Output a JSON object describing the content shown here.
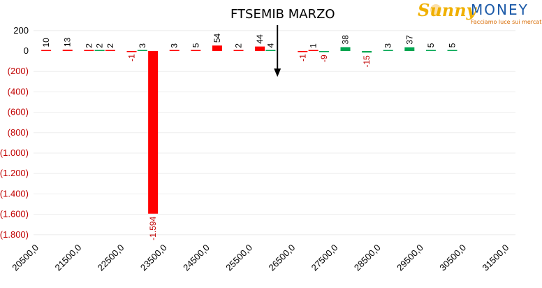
{
  "logo": {
    "brand_part1": "Sunny",
    "brand_part2": "MONEY",
    "tagline": "Facciamo luce sui mercati"
  },
  "title": "FTSEMIB MARZO",
  "colors": {
    "positive": "#00a651",
    "negative": "#ff0000",
    "axis_text": "#000000",
    "negative_text": "#c00000",
    "grid": "#eeeeee"
  },
  "chart_data": {
    "type": "bar",
    "title": "FTSEMIB MARZO",
    "xlabel": "",
    "ylabel": "",
    "ylim": [
      -1800,
      200
    ],
    "grid": true,
    "legend": "none",
    "marker": {
      "label": "FTSEMIB MARZO",
      "x": 26500
    },
    "x_ticks": [
      20500,
      21500,
      22500,
      23500,
      24500,
      25500,
      26500,
      27500,
      28500,
      29500,
      30500,
      31500
    ],
    "x_tick_labels": [
      "20500,0",
      "21500,0",
      "22500,0",
      "23500,0",
      "24500,0",
      "25500,0",
      "26500,0",
      "27500,0",
      "28500,0",
      "29500,0",
      "30500,0",
      "31500,0"
    ],
    "y_ticks": [
      200,
      0,
      -200,
      -400,
      -600,
      -800,
      -1000,
      -1200,
      -1400,
      -1600,
      -1800
    ],
    "y_tick_labels": [
      "200",
      "0",
      "(200)",
      "(400)",
      "(600)",
      "(800)",
      "(1.000)",
      "(1.200)",
      "(1.400)",
      "(1.600)",
      "(1.800)"
    ],
    "bars": [
      {
        "x": 20600,
        "value": 10,
        "color": "red",
        "label": "10"
      },
      {
        "x": 21100,
        "value": 13,
        "color": "red",
        "label": "13"
      },
      {
        "x": 21600,
        "value": 2,
        "color": "red",
        "label": "2"
      },
      {
        "x": 21850,
        "value": 2,
        "color": "green",
        "label": "2"
      },
      {
        "x": 22100,
        "value": 2,
        "color": "red",
        "label": "2"
      },
      {
        "x": 22600,
        "value": -1,
        "color": "red",
        "label": "-1"
      },
      {
        "x": 22850,
        "value": 3,
        "color": "green",
        "label": "3"
      },
      {
        "x": 23100,
        "value": -1594,
        "color": "red",
        "label": "-1.594"
      },
      {
        "x": 23600,
        "value": 3,
        "color": "red",
        "label": "3"
      },
      {
        "x": 24100,
        "value": 5,
        "color": "red",
        "label": "5"
      },
      {
        "x": 24600,
        "value": 54,
        "color": "red",
        "label": "54"
      },
      {
        "x": 25100,
        "value": 2,
        "color": "red",
        "label": "2"
      },
      {
        "x": 25600,
        "value": 44,
        "color": "red",
        "label": "44"
      },
      {
        "x": 25850,
        "value": 4,
        "color": "green",
        "label": "4"
      },
      {
        "x": 26600,
        "value": -1,
        "color": "red",
        "label": "-1"
      },
      {
        "x": 26850,
        "value": 1,
        "color": "red",
        "label": "1"
      },
      {
        "x": 27100,
        "value": -9,
        "color": "green",
        "label": "-9"
      },
      {
        "x": 27600,
        "value": 38,
        "color": "green",
        "label": "38"
      },
      {
        "x": 28100,
        "value": -15,
        "color": "green",
        "label": "-15"
      },
      {
        "x": 28600,
        "value": 3,
        "color": "green",
        "label": "3"
      },
      {
        "x": 29100,
        "value": 37,
        "color": "green",
        "label": "37"
      },
      {
        "x": 29600,
        "value": 5,
        "color": "green",
        "label": "5"
      },
      {
        "x": 30100,
        "value": 5,
        "color": "green",
        "label": "5"
      }
    ]
  }
}
